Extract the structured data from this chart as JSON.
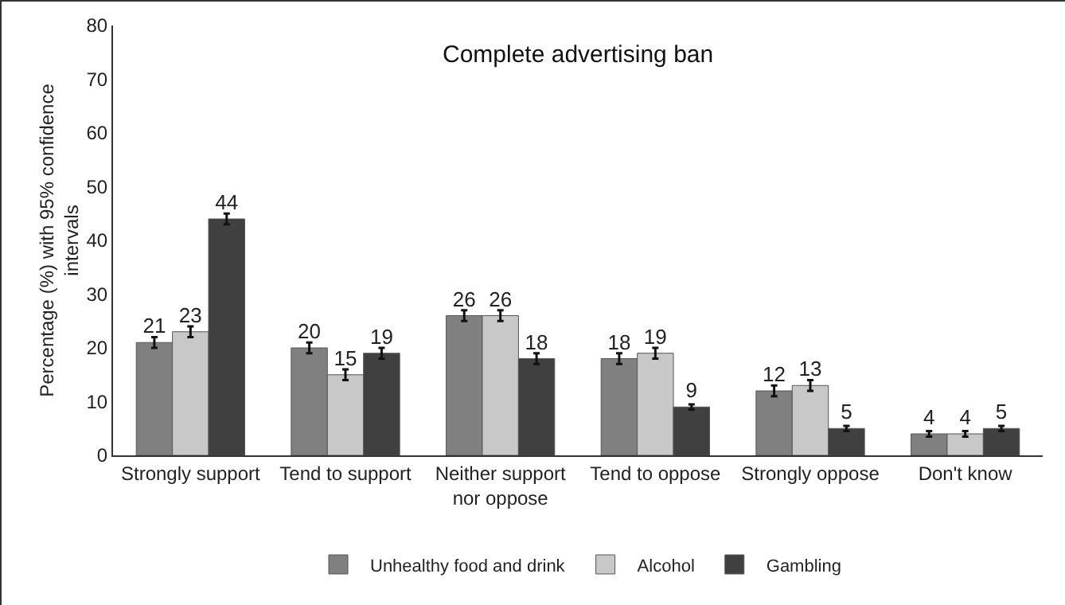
{
  "chart_data": {
    "type": "bar",
    "title": "Complete advertising ban",
    "ylabel": "Percentage (%) with 95% confidence intervals",
    "categories": [
      "Strongly support",
      "Tend to support",
      "Neither support nor oppose",
      "Tend to oppose",
      "Strongly oppose",
      "Don't know"
    ],
    "series": [
      {
        "name": "Unhealthy food and drink",
        "color": "#808080",
        "values": [
          21,
          20,
          26,
          18,
          12,
          4
        ],
        "errors": [
          1,
          1,
          1,
          1,
          1,
          0.5
        ]
      },
      {
        "name": "Alcohol",
        "color": "#c8c8c8",
        "values": [
          23,
          15,
          26,
          19,
          13,
          4
        ],
        "errors": [
          1,
          1,
          1,
          1,
          1,
          0.5
        ]
      },
      {
        "name": "Gambling",
        "color": "#404040",
        "values": [
          44,
          19,
          18,
          9,
          5,
          5
        ],
        "errors": [
          1,
          1,
          1,
          0.5,
          0.5,
          0.5
        ]
      }
    ],
    "ylim": [
      0,
      80
    ],
    "yticks": [
      0,
      10,
      20,
      30,
      40,
      50,
      60,
      70,
      80
    ],
    "grid": false,
    "legend": "bottom",
    "data_labels": true
  }
}
